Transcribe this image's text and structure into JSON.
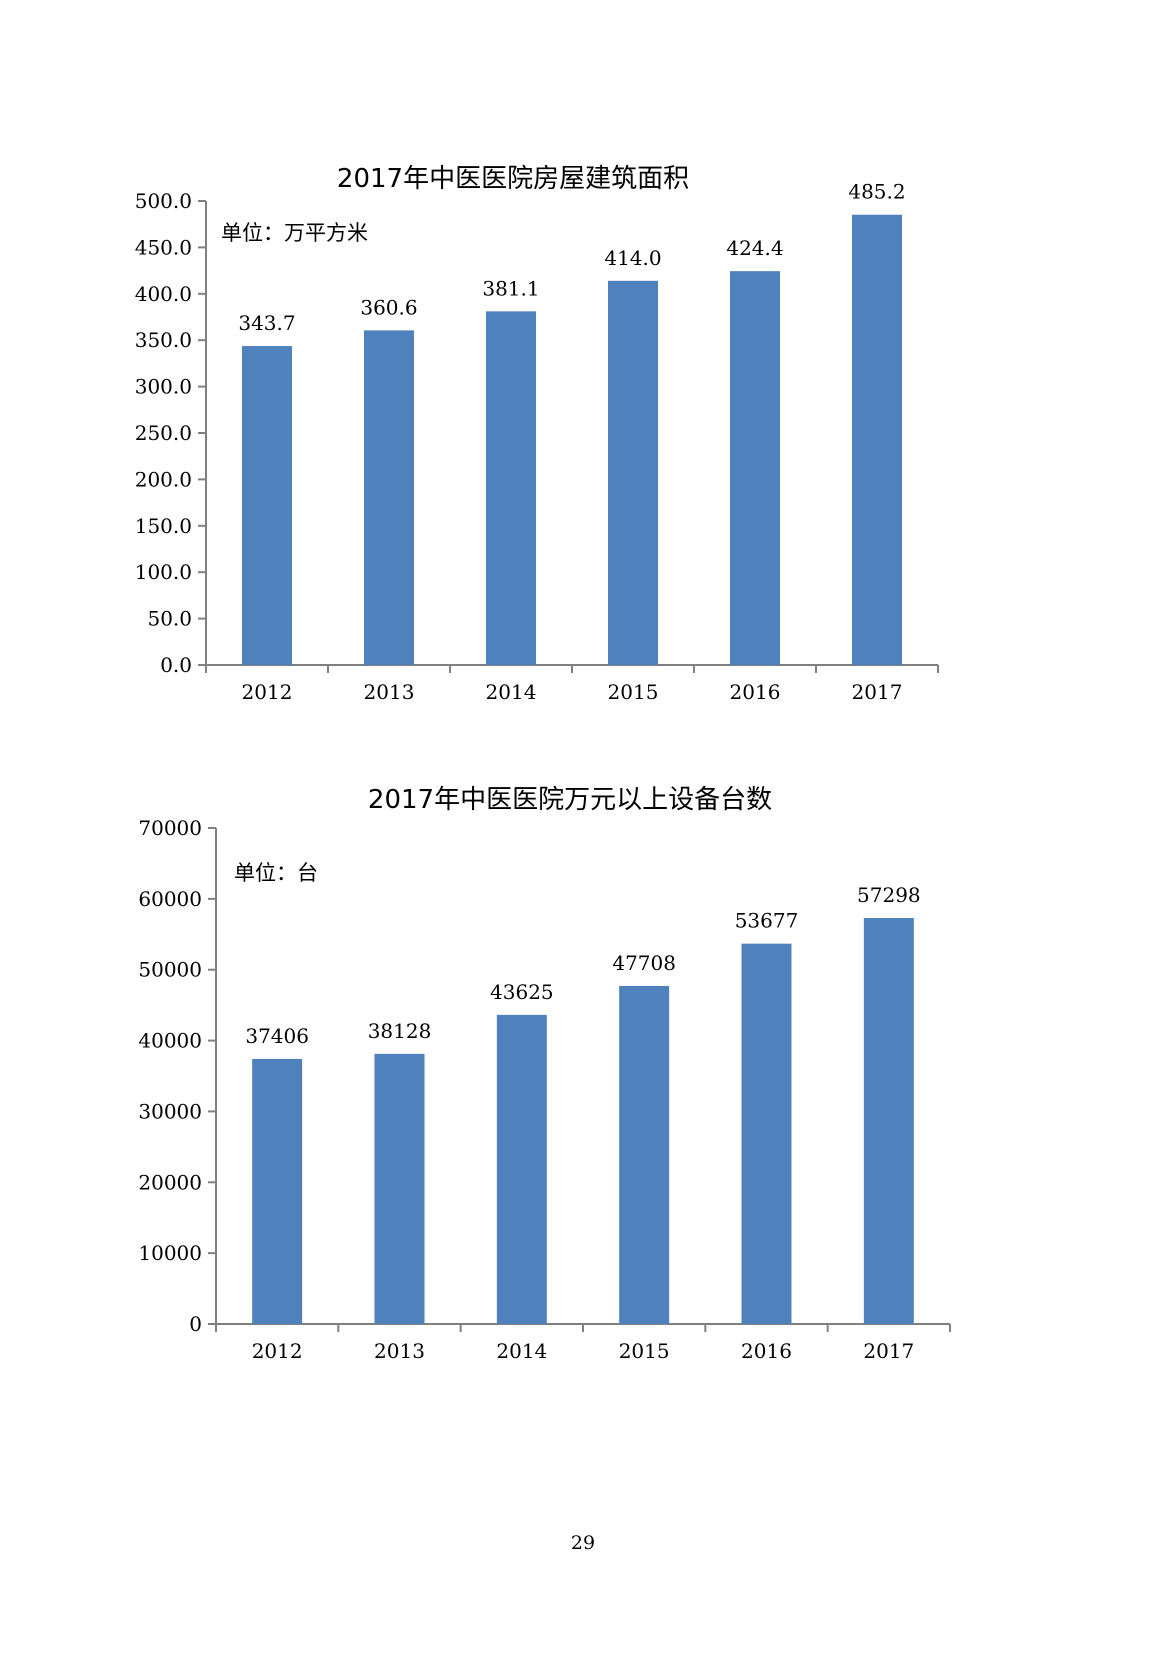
{
  "chart_data": [
    {
      "type": "bar",
      "title": "2017年中医医院房屋建筑面积",
      "unit_label": "单位：万平方米",
      "categories": [
        "2012",
        "2013",
        "2014",
        "2015",
        "2016",
        "2017"
      ],
      "values": [
        343.7,
        360.6,
        381.1,
        414.0,
        424.4,
        485.2
      ],
      "data_labels": [
        "343.7",
        "360.6",
        "381.1",
        "414.0",
        "424.4",
        "485.2"
      ],
      "ylim": [
        0,
        500
      ],
      "yticks": [
        0,
        50,
        100,
        150,
        200,
        250,
        300,
        350,
        400,
        450,
        500
      ],
      "ytick_labels": [
        "0.0",
        "50.0",
        "100.0",
        "150.0",
        "200.0",
        "250.0",
        "300.0",
        "350.0",
        "400.0",
        "450.0",
        "500.0"
      ],
      "xlabel": "",
      "ylabel": "",
      "grid": false,
      "legend": "none",
      "bar_color": "#4f81bd"
    },
    {
      "type": "bar",
      "title": "2017年中医医院万元以上设备台数",
      "unit_label": "单位：台",
      "categories": [
        "2012",
        "2013",
        "2014",
        "2015",
        "2016",
        "2017"
      ],
      "values": [
        37406,
        38128,
        43625,
        47708,
        53677,
        57298
      ],
      "data_labels": [
        "37406",
        "38128",
        "43625",
        "47708",
        "53677",
        "57298"
      ],
      "ylim": [
        0,
        70000
      ],
      "yticks": [
        0,
        10000,
        20000,
        30000,
        40000,
        50000,
        60000,
        70000
      ],
      "ytick_labels": [
        "0",
        "10000",
        "20000",
        "30000",
        "40000",
        "50000",
        "60000",
        "70000"
      ],
      "xlabel": "",
      "ylabel": "",
      "grid": false,
      "legend": "none",
      "bar_color": "#4f81bd"
    }
  ],
  "page_number": "29",
  "colors": {
    "bar": "#4f81bd",
    "axis": "#808080",
    "text": "#000000"
  }
}
